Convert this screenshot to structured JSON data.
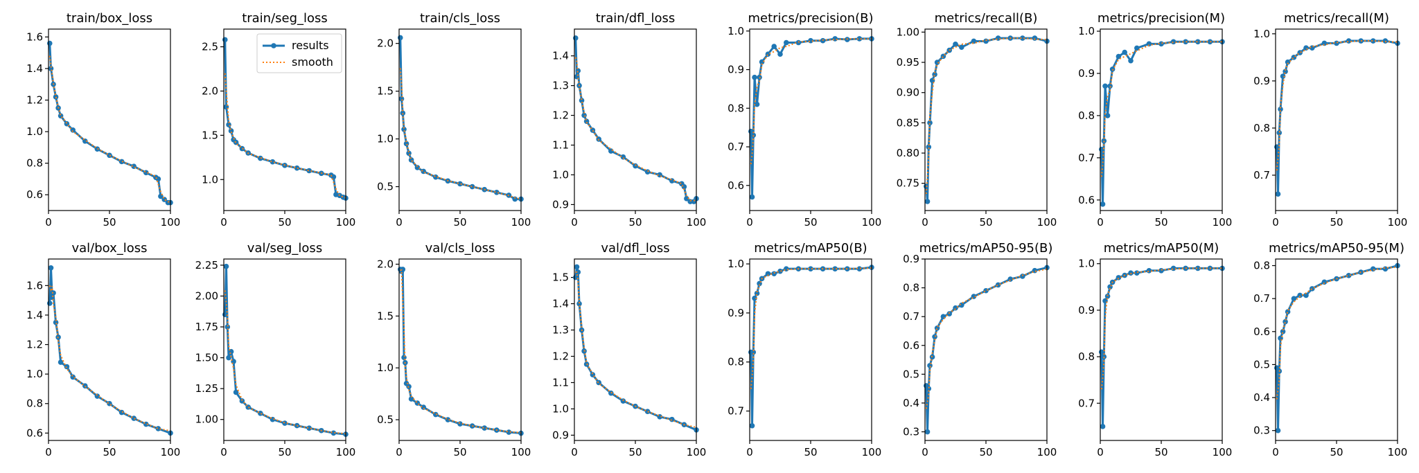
{
  "colors": {
    "results": "#1f77b4",
    "smooth": "#ff7f0e"
  },
  "legend": {
    "results_label": "results",
    "smooth_label": "smooth",
    "placement": "upper right of train/seg_loss panel"
  },
  "chart_data": [
    {
      "type": "line",
      "title": "train/box_loss",
      "xlim": [
        0,
        100
      ],
      "ylim": [
        0.5,
        1.65
      ],
      "xticks": [
        0,
        50,
        100
      ],
      "yticks": [
        0.6,
        0.8,
        1.0,
        1.2,
        1.4,
        1.6
      ],
      "x": [
        1,
        2,
        4,
        6,
        8,
        10,
        15,
        20,
        30,
        40,
        50,
        60,
        70,
        80,
        88,
        90,
        92,
        95,
        98,
        100
      ],
      "series": [
        {
          "name": "results",
          "values": [
            1.56,
            1.4,
            1.3,
            1.22,
            1.15,
            1.1,
            1.05,
            1.01,
            0.94,
            0.89,
            0.85,
            0.81,
            0.78,
            0.74,
            0.71,
            0.7,
            0.59,
            0.57,
            0.55,
            0.55
          ]
        }
      ]
    },
    {
      "type": "line",
      "title": "train/seg_loss",
      "xlim": [
        0,
        100
      ],
      "ylim": [
        0.65,
        2.7
      ],
      "xticks": [
        0,
        50,
        100
      ],
      "yticks": [
        1.0,
        1.5,
        2.0,
        2.5
      ],
      "x": [
        1,
        2,
        4,
        6,
        8,
        10,
        15,
        20,
        30,
        40,
        50,
        60,
        70,
        80,
        88,
        90,
        92,
        95,
        98,
        100
      ],
      "series": [
        {
          "name": "results",
          "values": [
            2.58,
            1.82,
            1.62,
            1.55,
            1.45,
            1.42,
            1.35,
            1.3,
            1.24,
            1.2,
            1.16,
            1.13,
            1.1,
            1.07,
            1.05,
            1.03,
            0.83,
            0.82,
            0.8,
            0.79
          ]
        }
      ]
    },
    {
      "type": "line",
      "title": "train/cls_loss",
      "xlim": [
        0,
        100
      ],
      "ylim": [
        0.25,
        2.15
      ],
      "xticks": [
        0,
        50,
        100
      ],
      "yticks": [
        0.5,
        1.0,
        1.5,
        2.0
      ],
      "x": [
        1,
        2,
        3,
        4,
        6,
        8,
        10,
        15,
        20,
        30,
        40,
        50,
        60,
        70,
        80,
        90,
        95,
        100
      ],
      "series": [
        {
          "name": "results",
          "values": [
            2.06,
            1.42,
            1.27,
            1.1,
            0.95,
            0.85,
            0.78,
            0.7,
            0.66,
            0.6,
            0.56,
            0.53,
            0.5,
            0.47,
            0.44,
            0.41,
            0.37,
            0.37
          ]
        }
      ]
    },
    {
      "type": "line",
      "title": "train/dfl_loss",
      "xlim": [
        0,
        100
      ],
      "ylim": [
        0.88,
        1.49
      ],
      "xticks": [
        0,
        50,
        100
      ],
      "yticks": [
        0.9,
        1.0,
        1.1,
        1.2,
        1.3,
        1.4
      ],
      "x": [
        1,
        2,
        3,
        4,
        6,
        8,
        10,
        15,
        20,
        30,
        40,
        50,
        60,
        70,
        80,
        88,
        90,
        92,
        95,
        98,
        100
      ],
      "series": [
        {
          "name": "results",
          "values": [
            1.46,
            1.33,
            1.35,
            1.3,
            1.25,
            1.2,
            1.18,
            1.15,
            1.12,
            1.08,
            1.06,
            1.03,
            1.01,
            1.0,
            0.98,
            0.97,
            0.96,
            0.92,
            0.91,
            0.91,
            0.92
          ]
        }
      ]
    },
    {
      "type": "line",
      "title": "metrics/precision(B)",
      "xlim": [
        0,
        100
      ],
      "ylim": [
        0.535,
        1.005
      ],
      "xticks": [
        0,
        50,
        100
      ],
      "yticks": [
        0.6,
        0.7,
        0.8,
        0.9,
        1.0
      ],
      "x": [
        1,
        2,
        3,
        4,
        6,
        8,
        10,
        15,
        20,
        25,
        30,
        40,
        50,
        60,
        70,
        80,
        90,
        100
      ],
      "series": [
        {
          "name": "results",
          "values": [
            0.74,
            0.57,
            0.73,
            0.88,
            0.81,
            0.88,
            0.92,
            0.94,
            0.96,
            0.94,
            0.97,
            0.97,
            0.975,
            0.975,
            0.98,
            0.978,
            0.98,
            0.98
          ]
        }
      ]
    },
    {
      "type": "line",
      "title": "metrics/recall(B)",
      "xlim": [
        0,
        100
      ],
      "ylim": [
        0.705,
        1.005
      ],
      "xticks": [
        0,
        50,
        100
      ],
      "yticks": [
        0.75,
        0.8,
        0.85,
        0.9,
        0.95,
        1.0
      ],
      "x": [
        1,
        2,
        3,
        4,
        6,
        8,
        10,
        15,
        20,
        25,
        30,
        40,
        50,
        60,
        70,
        80,
        90,
        100
      ],
      "series": [
        {
          "name": "results",
          "values": [
            0.745,
            0.72,
            0.81,
            0.85,
            0.92,
            0.93,
            0.95,
            0.96,
            0.97,
            0.98,
            0.975,
            0.985,
            0.985,
            0.99,
            0.99,
            0.99,
            0.99,
            0.985
          ]
        }
      ]
    },
    {
      "type": "line",
      "title": "metrics/precision(M)",
      "xlim": [
        0,
        100
      ],
      "ylim": [
        0.575,
        1.005
      ],
      "xticks": [
        0,
        50,
        100
      ],
      "yticks": [
        0.6,
        0.7,
        0.8,
        0.9,
        1.0
      ],
      "x": [
        1,
        2,
        3,
        4,
        6,
        8,
        10,
        15,
        20,
        25,
        30,
        40,
        50,
        60,
        70,
        80,
        90,
        100
      ],
      "series": [
        {
          "name": "results",
          "values": [
            0.72,
            0.59,
            0.74,
            0.87,
            0.8,
            0.87,
            0.91,
            0.94,
            0.95,
            0.93,
            0.96,
            0.97,
            0.97,
            0.975,
            0.975,
            0.975,
            0.975,
            0.975
          ]
        }
      ]
    },
    {
      "type": "line",
      "title": "metrics/recall(M)",
      "xlim": [
        0,
        100
      ],
      "ylim": [
        0.625,
        1.01
      ],
      "xticks": [
        0,
        50,
        100
      ],
      "yticks": [
        0.7,
        0.8,
        0.9,
        1.0
      ],
      "x": [
        1,
        2,
        3,
        4,
        6,
        8,
        10,
        15,
        20,
        25,
        30,
        40,
        50,
        60,
        70,
        80,
        90,
        100
      ],
      "series": [
        {
          "name": "results",
          "values": [
            0.76,
            0.66,
            0.79,
            0.84,
            0.91,
            0.92,
            0.94,
            0.95,
            0.96,
            0.97,
            0.97,
            0.98,
            0.98,
            0.985,
            0.985,
            0.985,
            0.985,
            0.98
          ]
        }
      ]
    },
    {
      "type": "line",
      "title": "val/box_loss",
      "xlim": [
        0,
        100
      ],
      "ylim": [
        0.55,
        1.78
      ],
      "xticks": [
        0,
        50,
        100
      ],
      "yticks": [
        0.6,
        0.8,
        1.0,
        1.2,
        1.4,
        1.6
      ],
      "x": [
        1,
        2,
        3,
        4,
        6,
        8,
        10,
        15,
        20,
        30,
        40,
        50,
        60,
        70,
        80,
        90,
        100
      ],
      "series": [
        {
          "name": "results",
          "values": [
            1.48,
            1.72,
            1.52,
            1.55,
            1.35,
            1.25,
            1.08,
            1.05,
            0.98,
            0.92,
            0.85,
            0.8,
            0.74,
            0.7,
            0.66,
            0.63,
            0.6
          ]
        }
      ]
    },
    {
      "type": "line",
      "title": "val/seg_loss",
      "xlim": [
        0,
        100
      ],
      "ylim": [
        0.83,
        2.3
      ],
      "xticks": [
        0,
        50,
        100
      ],
      "yticks": [
        1.0,
        1.25,
        1.5,
        1.75,
        2.0,
        2.25
      ],
      "x": [
        1,
        2,
        3,
        4,
        6,
        8,
        10,
        15,
        20,
        30,
        40,
        50,
        60,
        70,
        80,
        90,
        100
      ],
      "series": [
        {
          "name": "results",
          "values": [
            1.85,
            2.24,
            1.75,
            1.5,
            1.55,
            1.47,
            1.22,
            1.15,
            1.1,
            1.05,
            1.0,
            0.97,
            0.95,
            0.93,
            0.91,
            0.89,
            0.88
          ]
        }
      ]
    },
    {
      "type": "line",
      "title": "val/cls_loss",
      "xlim": [
        0,
        100
      ],
      "ylim": [
        0.3,
        2.05
      ],
      "xticks": [
        0,
        50,
        100
      ],
      "yticks": [
        0.5,
        1.0,
        1.5,
        2.0
      ],
      "x": [
        1,
        2,
        3,
        4,
        5,
        6,
        8,
        10,
        15,
        20,
        30,
        40,
        50,
        60,
        70,
        80,
        90,
        100
      ],
      "series": [
        {
          "name": "results",
          "values": [
            1.95,
            1.93,
            1.95,
            1.1,
            1.05,
            0.85,
            0.82,
            0.7,
            0.66,
            0.62,
            0.55,
            0.5,
            0.46,
            0.44,
            0.42,
            0.4,
            0.38,
            0.37
          ]
        }
      ]
    },
    {
      "type": "line",
      "title": "val/dfl_loss",
      "xlim": [
        0,
        100
      ],
      "ylim": [
        0.88,
        1.57
      ],
      "xticks": [
        0,
        50,
        100
      ],
      "yticks": [
        0.9,
        1.0,
        1.1,
        1.2,
        1.3,
        1.4,
        1.5
      ],
      "x": [
        1,
        2,
        3,
        4,
        6,
        8,
        10,
        15,
        20,
        30,
        40,
        50,
        60,
        70,
        80,
        90,
        100
      ],
      "series": [
        {
          "name": "results",
          "values": [
            1.5,
            1.54,
            1.52,
            1.4,
            1.3,
            1.22,
            1.17,
            1.13,
            1.1,
            1.06,
            1.03,
            1.01,
            0.99,
            0.97,
            0.96,
            0.94,
            0.92
          ]
        }
      ]
    },
    {
      "type": "line",
      "title": "metrics/mAP50(B)",
      "xlim": [
        0,
        100
      ],
      "ylim": [
        0.64,
        1.01
      ],
      "xticks": [
        0,
        50,
        100
      ],
      "yticks": [
        0.7,
        0.8,
        0.9,
        1.0
      ],
      "x": [
        1,
        2,
        3,
        4,
        6,
        8,
        10,
        15,
        20,
        25,
        30,
        40,
        50,
        60,
        70,
        80,
        90,
        100
      ],
      "series": [
        {
          "name": "results",
          "values": [
            0.82,
            0.67,
            0.82,
            0.93,
            0.94,
            0.96,
            0.97,
            0.98,
            0.98,
            0.985,
            0.99,
            0.99,
            0.99,
            0.99,
            0.99,
            0.99,
            0.99,
            0.993
          ]
        }
      ]
    },
    {
      "type": "line",
      "title": "metrics/mAP50-95(B)",
      "xlim": [
        0,
        100
      ],
      "ylim": [
        0.27,
        0.9
      ],
      "xticks": [
        0,
        50,
        100
      ],
      "yticks": [
        0.3,
        0.4,
        0.5,
        0.6,
        0.7,
        0.8,
        0.9
      ],
      "x": [
        1,
        2,
        3,
        4,
        6,
        8,
        10,
        15,
        20,
        25,
        30,
        40,
        50,
        60,
        70,
        80,
        90,
        100
      ],
      "series": [
        {
          "name": "results",
          "values": [
            0.46,
            0.3,
            0.45,
            0.53,
            0.56,
            0.63,
            0.66,
            0.7,
            0.71,
            0.73,
            0.74,
            0.77,
            0.79,
            0.81,
            0.83,
            0.84,
            0.86,
            0.87
          ]
        }
      ]
    },
    {
      "type": "line",
      "title": "metrics/mAP50(M)",
      "xlim": [
        0,
        100
      ],
      "ylim": [
        0.62,
        1.01
      ],
      "xticks": [
        0,
        50,
        100
      ],
      "yticks": [
        0.7,
        0.8,
        0.9,
        1.0
      ],
      "x": [
        1,
        2,
        3,
        4,
        6,
        8,
        10,
        15,
        20,
        25,
        30,
        40,
        50,
        60,
        70,
        80,
        90,
        100
      ],
      "series": [
        {
          "name": "results",
          "values": [
            0.81,
            0.65,
            0.8,
            0.92,
            0.93,
            0.95,
            0.96,
            0.97,
            0.975,
            0.98,
            0.98,
            0.985,
            0.985,
            0.99,
            0.99,
            0.99,
            0.99,
            0.99
          ]
        }
      ]
    },
    {
      "type": "line",
      "title": "metrics/mAP50-95(M)",
      "xlim": [
        0,
        100
      ],
      "ylim": [
        0.27,
        0.82
      ],
      "xticks": [
        0,
        50,
        100
      ],
      "yticks": [
        0.3,
        0.4,
        0.5,
        0.6,
        0.7,
        0.8
      ],
      "x": [
        1,
        2,
        3,
        4,
        6,
        8,
        10,
        15,
        20,
        25,
        30,
        40,
        50,
        60,
        70,
        80,
        90,
        100
      ],
      "series": [
        {
          "name": "results",
          "values": [
            0.49,
            0.3,
            0.48,
            0.58,
            0.6,
            0.63,
            0.66,
            0.7,
            0.71,
            0.71,
            0.73,
            0.75,
            0.76,
            0.77,
            0.78,
            0.79,
            0.79,
            0.8
          ]
        }
      ]
    }
  ]
}
